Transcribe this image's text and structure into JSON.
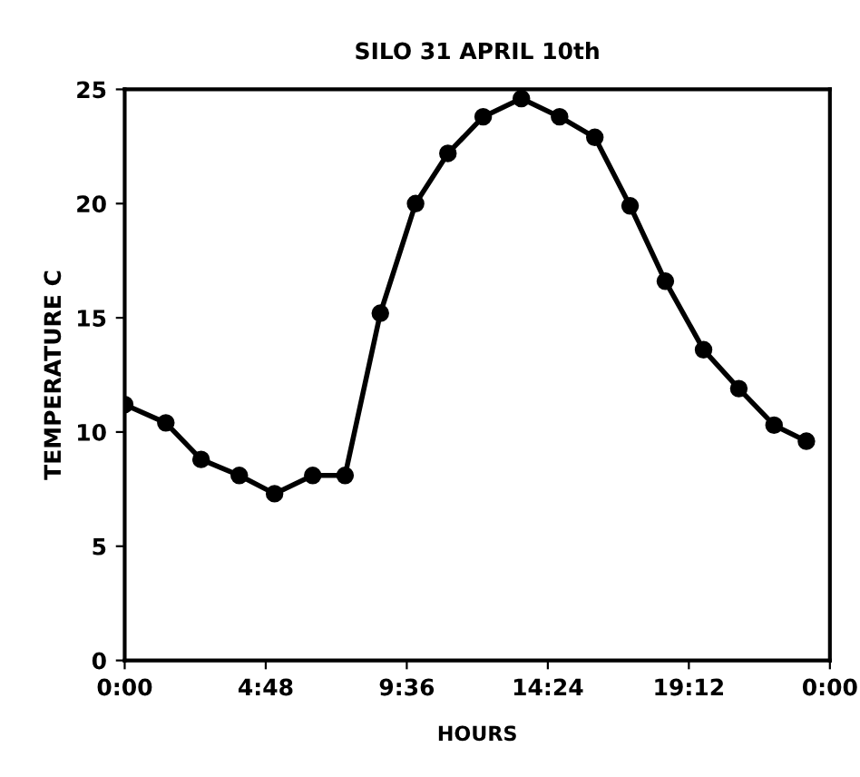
{
  "chart_data": {
    "type": "line",
    "title": "SILO 31 APRIL 10th",
    "xlabel": "HOURS",
    "ylabel": "TEMPERATURE C",
    "x": [
      0,
      1.4,
      2.6,
      3.9,
      5.1,
      6.4,
      7.5,
      8.7,
      9.9,
      11.0,
      12.2,
      13.5,
      14.8,
      16.0,
      17.2,
      18.4,
      19.7,
      20.9,
      22.1,
      23.2
    ],
    "series": [
      {
        "color": "#000000",
        "values": [
          11.2,
          10.4,
          8.8,
          8.1,
          7.3,
          8.1,
          8.1,
          15.2,
          20.0,
          22.2,
          23.8,
          24.6,
          23.8,
          22.9,
          19.9,
          16.6,
          13.6,
          11.9,
          10.3,
          9.6
        ]
      }
    ],
    "xlim": [
      0,
      24
    ],
    "xticks": [
      {
        "value": 0,
        "label": "0:00"
      },
      {
        "value": 4.8,
        "label": "4:48"
      },
      {
        "value": 9.6,
        "label": "9:36"
      },
      {
        "value": 14.4,
        "label": "14:24"
      },
      {
        "value": 19.2,
        "label": "19:12"
      },
      {
        "value": 24,
        "label": "0:00"
      }
    ],
    "ylim": [
      0,
      25
    ],
    "yticks": [
      0,
      5,
      10,
      15,
      20,
      25
    ],
    "grid": false,
    "legend": false,
    "marker": "circle",
    "line_style": "solid"
  }
}
